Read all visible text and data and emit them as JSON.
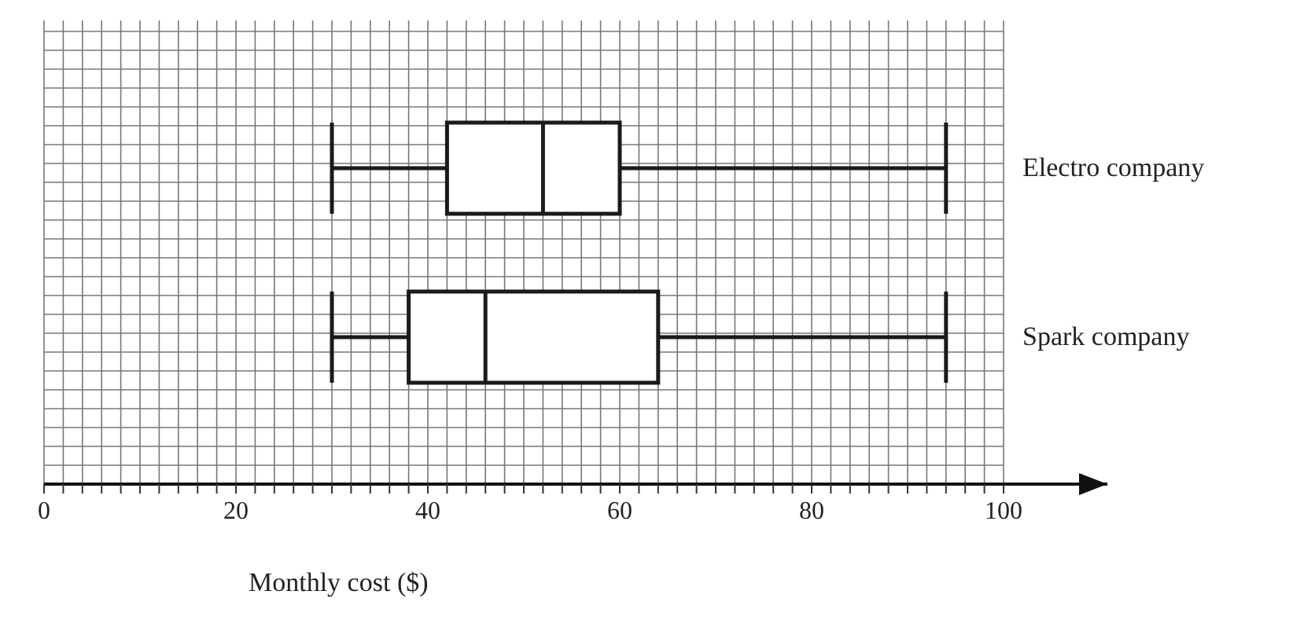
{
  "chart_data": {
    "type": "box",
    "orientation": "horizontal",
    "categories": [
      "Electro company",
      "Spark company"
    ],
    "color": "#1a1a1a",
    "boxes": [
      {
        "low": 30,
        "q1": 42,
        "median": 52,
        "q3": 60,
        "high": 94
      },
      {
        "low": 30,
        "q1": 38,
        "median": 46,
        "q3": 64,
        "high": 94
      }
    ],
    "xlabel": "Monthly cost ($)",
    "xlim": [
      0,
      100
    ],
    "xticks": [
      0,
      {
        "value": 2,
        "label": null
      },
      {
        "value": 4,
        "label": null
      },
      {
        "value": 6,
        "label": null
      },
      {
        "value": 8,
        "label": null
      },
      {
        "value": 10,
        "label": null
      },
      {
        "value": 12,
        "label": null
      },
      {
        "value": 14,
        "label": null
      },
      {
        "value": 16,
        "label": null
      },
      {
        "value": 18,
        "label": null
      },
      20,
      {
        "value": 22,
        "label": null
      },
      {
        "value": 24,
        "label": null
      },
      {
        "value": 26,
        "label": null
      },
      {
        "value": 28,
        "label": null
      },
      {
        "value": 30,
        "label": null
      },
      {
        "value": 32,
        "label": null
      },
      {
        "value": 34,
        "label": null
      },
      {
        "value": 36,
        "label": null
      },
      {
        "value": 38,
        "label": null
      },
      40,
      {
        "value": 42,
        "label": null
      },
      {
        "value": 44,
        "label": null
      },
      {
        "value": 46,
        "label": null
      },
      {
        "value": 48,
        "label": null
      },
      {
        "value": 50,
        "label": null
      },
      {
        "value": 52,
        "label": null
      },
      {
        "value": 54,
        "label": null
      },
      {
        "value": 56,
        "label": null
      },
      {
        "value": 58,
        "label": null
      },
      60,
      {
        "value": 62,
        "label": null
      },
      {
        "value": 64,
        "label": null
      },
      {
        "value": 66,
        "label": null
      },
      {
        "value": 68,
        "label": null
      },
      {
        "value": 70,
        "label": null
      },
      {
        "value": 72,
        "label": null
      },
      {
        "value": 74,
        "label": null
      },
      {
        "value": 76,
        "label": null
      },
      {
        "value": 78,
        "label": null
      },
      80,
      {
        "value": 82,
        "label": null
      },
      {
        "value": 84,
        "label": null
      },
      {
        "value": 86,
        "label": null
      },
      {
        "value": 88,
        "label": null
      },
      {
        "value": 90,
        "label": null
      },
      {
        "value": 92,
        "label": null
      },
      {
        "value": 94,
        "label": null
      },
      {
        "value": 96,
        "label": null
      },
      {
        "value": 98,
        "label": null
      },
      100
    ],
    "grid": true
  }
}
